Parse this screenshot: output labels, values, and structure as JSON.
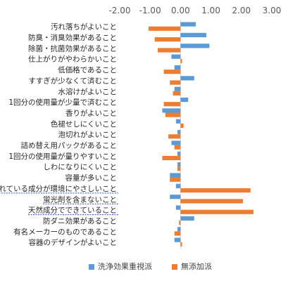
{
  "chart_data": {
    "type": "bar",
    "orientation": "horizontal",
    "title": "",
    "xlabel": "",
    "ylabel": "",
    "xlim": [
      -2.0,
      3.0
    ],
    "x_ticks": [
      "-2.00",
      "-1.00",
      "0.00",
      "1.00",
      "2.00",
      "3.00"
    ],
    "grid": false,
    "legend_position": "bottom",
    "categories": [
      "汚れ落ちがよいこと",
      "防臭・消臭効果があること",
      "除菌・抗菌効果があること",
      "仕上がりがやわらかいこと",
      "低価格であること",
      "すすぎが少なくて済むこと",
      "水溶けがよいこと",
      "1回分の使用量が少量で済むこと",
      "香りがよいこと",
      "色褪せしにくいこと",
      "泡切れがよいこと",
      "詰め替え用パックがあること",
      "1回分の使用量が量りやすいこと",
      "しわになりにくいこと",
      "容量が多いこと",
      "含まれている成分が環境にやさしいこと",
      "蛍光剤を含まないこと",
      "天然成分でできていること",
      "防ダニ効果があること",
      "有名メーカーのものであること",
      "容器のデザインがよいこと"
    ],
    "underlined_categories": [
      "含まれている成分が環境にやさしいこと",
      "蛍光剤を含まないこと",
      "天然成分でできていること"
    ],
    "series": [
      {
        "name": "洗浄効果重視派",
        "color": "#5B9BD5",
        "values": [
          0.5,
          0.85,
          0.95,
          -0.3,
          -0.2,
          0.45,
          -0.2,
          0.25,
          -0.6,
          -0.15,
          -0.1,
          -0.3,
          -0.1,
          -0.1,
          -0.35,
          -0.15,
          -0.35,
          -0.15,
          0.45,
          -0.1,
          -0.2
        ]
      },
      {
        "name": "無添加派",
        "color": "#ED7D31",
        "values": [
          -1.05,
          -0.85,
          -0.75,
          0.05,
          -0.55,
          -0.35,
          -0.25,
          -0.55,
          -0.5,
          0.1,
          -0.4,
          -0.2,
          -0.6,
          -0.1,
          -0.35,
          2.3,
          2.05,
          2.4,
          -0.05,
          -0.2,
          0.05
        ]
      }
    ]
  }
}
